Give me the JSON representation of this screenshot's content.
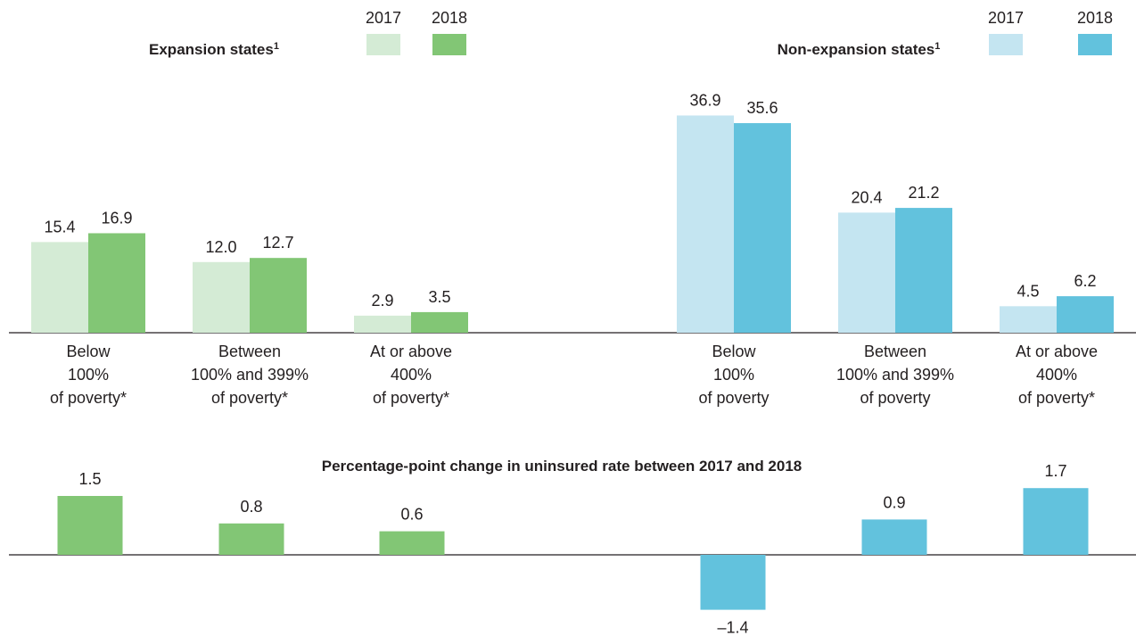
{
  "chart_data": [
    {
      "type": "bar",
      "title": "Expansion states¹",
      "legend": [
        "2017",
        "2018"
      ],
      "categories": [
        [
          "Below",
          "100%",
          "of poverty*"
        ],
        [
          "Between",
          "100% and 399%",
          "of poverty*"
        ],
        [
          "At or above",
          "400%",
          "of poverty*"
        ]
      ],
      "series": [
        {
          "name": "2017",
          "color": "#d4ebd5",
          "values": [
            15.4,
            12.0,
            2.9
          ],
          "labels": [
            "15.4",
            "12.0",
            "2.9"
          ]
        },
        {
          "name": "2018",
          "color": "#82c675",
          "values": [
            16.9,
            12.7,
            3.5
          ],
          "labels": [
            "16.9",
            "12.7",
            "3.5"
          ]
        }
      ]
    },
    {
      "type": "bar",
      "title": "Non-expansion states¹",
      "legend": [
        "2017",
        "2018"
      ],
      "categories": [
        [
          "Below",
          "100%",
          "of poverty"
        ],
        [
          "Between",
          "100% and 399%",
          "of poverty"
        ],
        [
          "At or above",
          "400%",
          "of poverty*"
        ]
      ],
      "series": [
        {
          "name": "2017",
          "color": "#c4e5f1",
          "values": [
            36.9,
            20.4,
            4.5
          ],
          "labels": [
            "36.9",
            "20.4",
            "4.5"
          ]
        },
        {
          "name": "2018",
          "color": "#62c2dd",
          "values": [
            35.6,
            21.2,
            6.2
          ],
          "labels": [
            "35.6",
            "21.2",
            "6.2"
          ]
        }
      ]
    },
    {
      "type": "bar",
      "title": "Percentage-point change in uninsured rate between 2017 and 2018",
      "values": [
        1.5,
        0.8,
        0.6,
        -1.4,
        0.9,
        1.7
      ],
      "labels": [
        "1.5",
        "0.8",
        "0.6",
        "–1.4",
        "0.9",
        "1.7"
      ],
      "colors": [
        "#82c675",
        "#82c675",
        "#82c675",
        "#62c2dd",
        "#62c2dd",
        "#62c2dd"
      ]
    }
  ]
}
